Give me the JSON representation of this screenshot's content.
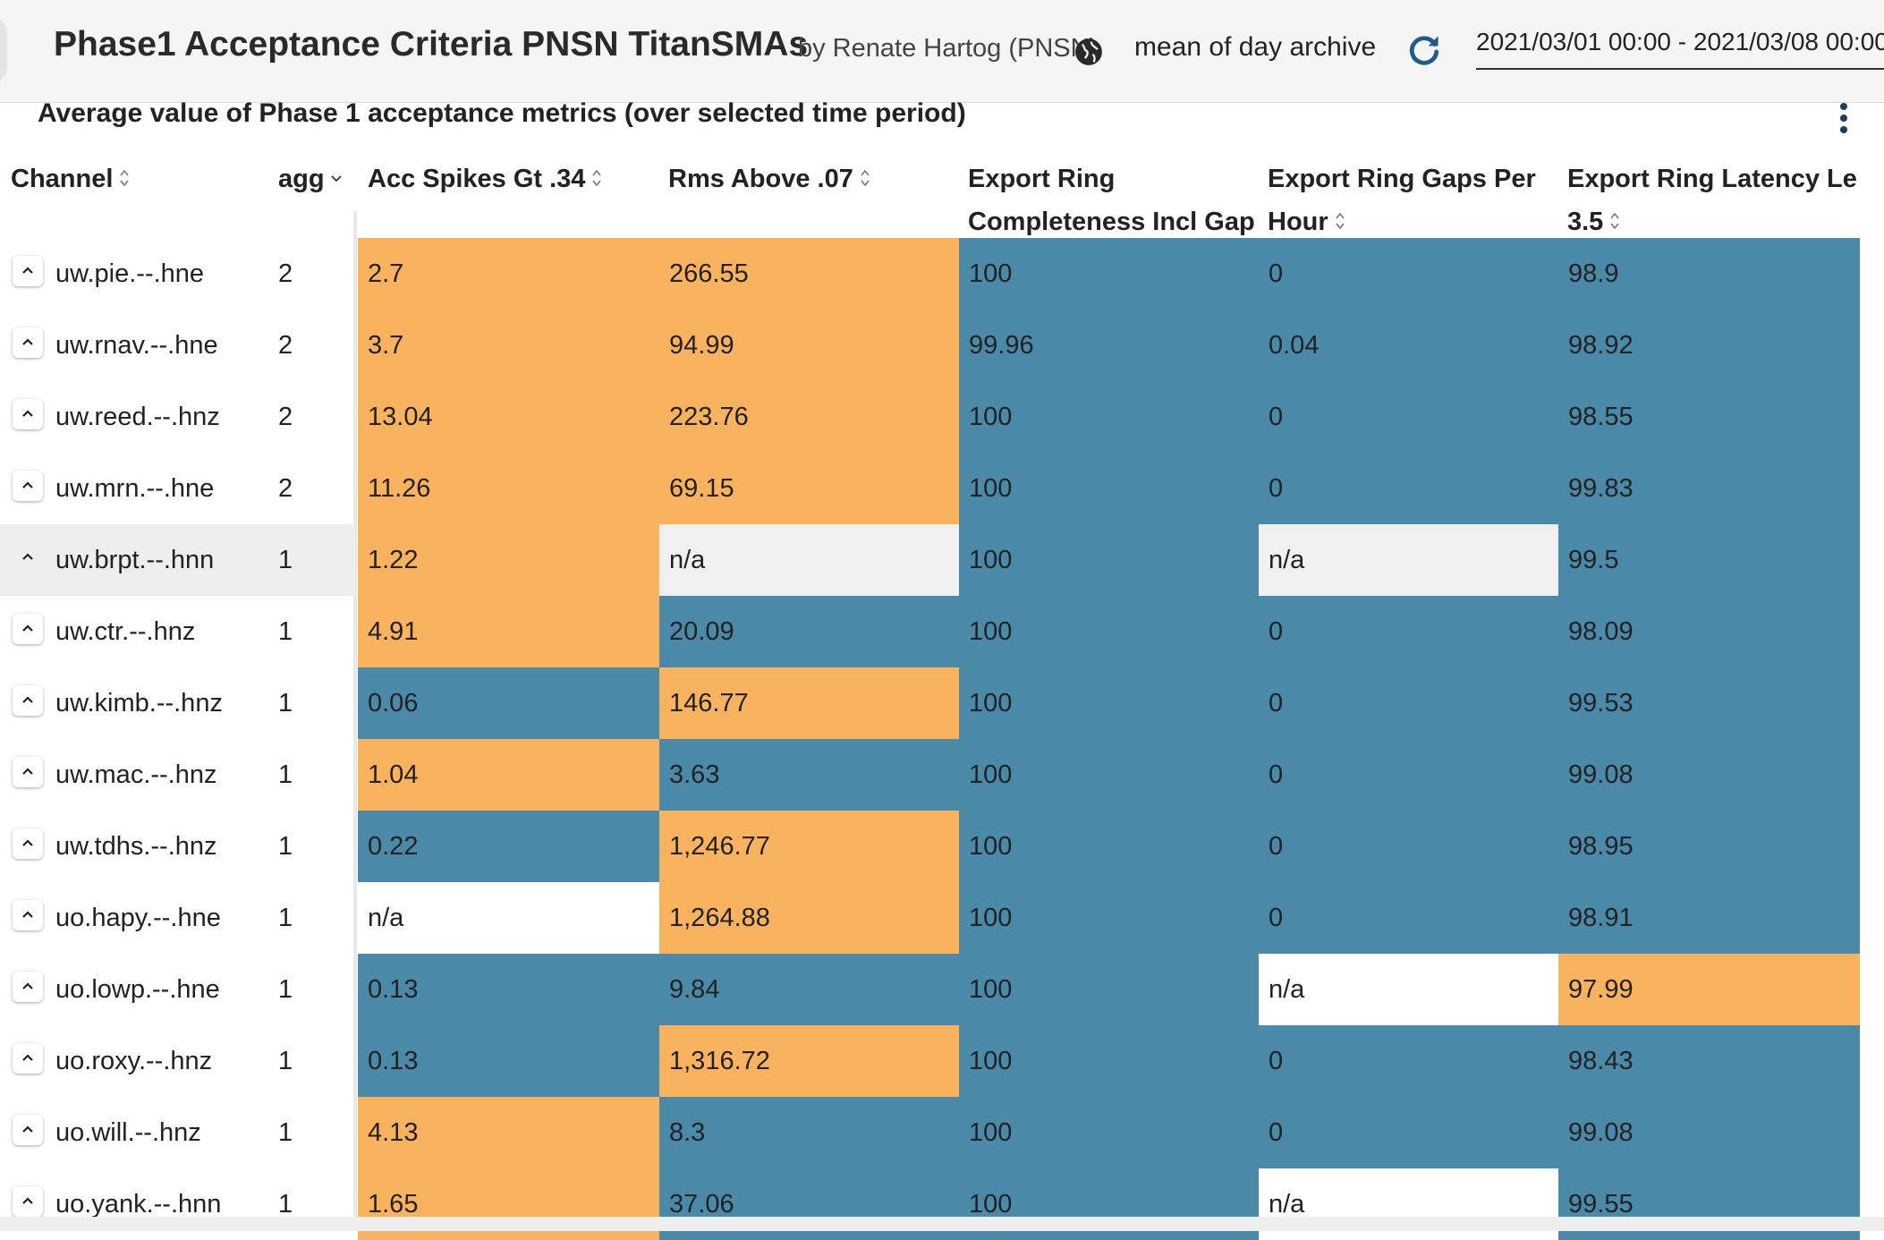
{
  "header": {
    "title": "Phase1 Acceptance Criteria PNSN TitanSMAs",
    "byline": "by Renate Hartog (PNSN)",
    "mode": "mean of day archive",
    "date_range": "2021/03/01 00:00 - 2021/03/08 00:00",
    "icons": {
      "globe": "globe-icon",
      "refresh": "refresh-icon",
      "menu": "more-vert-icon"
    }
  },
  "panel": {
    "title": "Average value of Phase 1 acceptance metrics (over selected time period)"
  },
  "colors": {
    "pass": "#4a89a8",
    "fail": "#f9b25e",
    "na": "#f0f0f0",
    "white": "#ffffff"
  },
  "table": {
    "columns": {
      "channel": "Channel",
      "agg": "agg",
      "acc_spikes": "Acc Spikes Gt .34",
      "rms_above": "Rms Above .07",
      "completeness_l1": "Export Ring",
      "completeness_l2": "Completeness Incl Gap",
      "gaps_l1": "Export Ring Gaps Per",
      "gaps_l2": "Hour",
      "latency_l1": "Export Ring Latency Le",
      "latency_l2": "3.5"
    },
    "rows": [
      {
        "channel": "uw.pie.--.hne",
        "agg": "2",
        "acc": "2.7",
        "accC": "fail",
        "rms": "266.55",
        "rmsC": "fail",
        "comp": "100",
        "compC": "pass",
        "gaps": "0",
        "gapsC": "pass",
        "lat": "98.9",
        "latC": "pass"
      },
      {
        "channel": "uw.rnav.--.hne",
        "agg": "2",
        "acc": "3.7",
        "accC": "fail",
        "rms": "94.99",
        "rmsC": "fail",
        "comp": "99.96",
        "compC": "pass",
        "gaps": "0.04",
        "gapsC": "pass",
        "lat": "98.92",
        "latC": "pass"
      },
      {
        "channel": "uw.reed.--.hnz",
        "agg": "2",
        "acc": "13.04",
        "accC": "fail",
        "rms": "223.76",
        "rmsC": "fail",
        "comp": "100",
        "compC": "pass",
        "gaps": "0",
        "gapsC": "pass",
        "lat": "98.55",
        "latC": "pass"
      },
      {
        "channel": "uw.mrn.--.hne",
        "agg": "2",
        "acc": "11.26",
        "accC": "fail",
        "rms": "69.15",
        "rmsC": "fail",
        "comp": "100",
        "compC": "pass",
        "gaps": "0",
        "gapsC": "pass",
        "lat": "99.83",
        "latC": "pass"
      },
      {
        "channel": "uw.brpt.--.hnn",
        "agg": "1",
        "acc": "1.22",
        "accC": "fail",
        "rms": "n/a",
        "rmsC": "na",
        "comp": "100",
        "compC": "pass",
        "gaps": "n/a",
        "gapsC": "na",
        "lat": "99.5",
        "latC": "pass"
      },
      {
        "channel": "uw.ctr.--.hnz",
        "agg": "1",
        "acc": "4.91",
        "accC": "fail",
        "rms": "20.09",
        "rmsC": "pass",
        "comp": "100",
        "compC": "pass",
        "gaps": "0",
        "gapsC": "pass",
        "lat": "98.09",
        "latC": "pass"
      },
      {
        "channel": "uw.kimb.--.hnz",
        "agg": "1",
        "acc": "0.06",
        "accC": "pass",
        "rms": "146.77",
        "rmsC": "fail",
        "comp": "100",
        "compC": "pass",
        "gaps": "0",
        "gapsC": "pass",
        "lat": "99.53",
        "latC": "pass"
      },
      {
        "channel": "uw.mac.--.hnz",
        "agg": "1",
        "acc": "1.04",
        "accC": "fail",
        "rms": "3.63",
        "rmsC": "pass",
        "comp": "100",
        "compC": "pass",
        "gaps": "0",
        "gapsC": "pass",
        "lat": "99.08",
        "latC": "pass"
      },
      {
        "channel": "uw.tdhs.--.hnz",
        "agg": "1",
        "acc": "0.22",
        "accC": "pass",
        "rms": "1,246.77",
        "rmsC": "fail",
        "comp": "100",
        "compC": "pass",
        "gaps": "0",
        "gapsC": "pass",
        "lat": "98.95",
        "latC": "pass"
      },
      {
        "channel": "uo.hapy.--.hne",
        "agg": "1",
        "acc": "n/a",
        "accC": "white",
        "rms": "1,264.88",
        "rmsC": "fail",
        "comp": "100",
        "compC": "pass",
        "gaps": "0",
        "gapsC": "pass",
        "lat": "98.91",
        "latC": "pass"
      },
      {
        "channel": "uo.lowp.--.hne",
        "agg": "1",
        "acc": "0.13",
        "accC": "pass",
        "rms": "9.84",
        "rmsC": "pass",
        "comp": "100",
        "compC": "pass",
        "gaps": "n/a",
        "gapsC": "white",
        "lat": "97.99",
        "latC": "fail"
      },
      {
        "channel": "uo.roxy.--.hnz",
        "agg": "1",
        "acc": "0.13",
        "accC": "pass",
        "rms": "1,316.72",
        "rmsC": "fail",
        "comp": "100",
        "compC": "pass",
        "gaps": "0",
        "gapsC": "pass",
        "lat": "98.43",
        "latC": "pass"
      },
      {
        "channel": "uo.will.--.hnz",
        "agg": "1",
        "acc": "4.13",
        "accC": "fail",
        "rms": "8.3",
        "rmsC": "pass",
        "comp": "100",
        "compC": "pass",
        "gaps": "0",
        "gapsC": "pass",
        "lat": "99.08",
        "latC": "pass"
      },
      {
        "channel": "uo.yank.--.hnn",
        "agg": "1",
        "acc": "1.65",
        "accC": "fail",
        "rms": "37.06",
        "rmsC": "pass",
        "comp": "100",
        "compC": "pass",
        "gaps": "n/a",
        "gapsC": "white",
        "lat": "99.55",
        "latC": "pass"
      }
    ]
  }
}
